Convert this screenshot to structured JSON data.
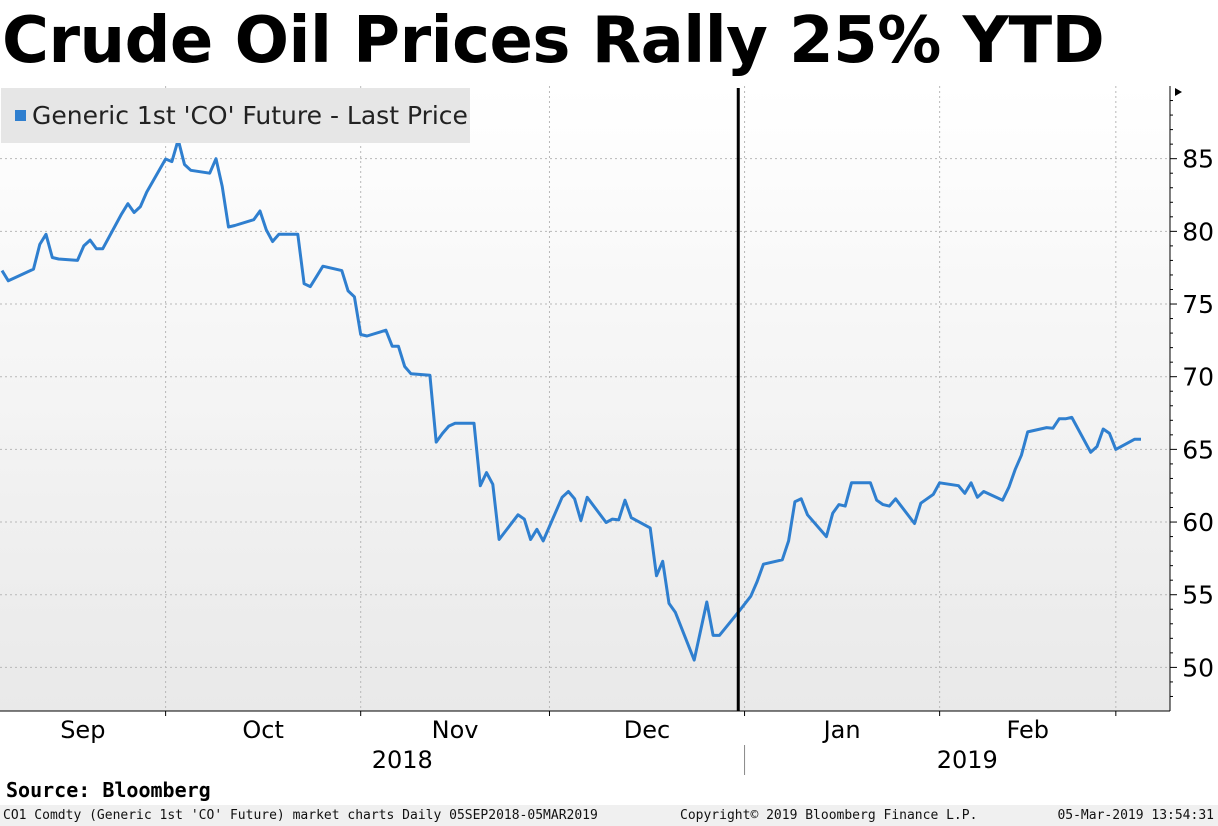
{
  "chart_data": {
    "type": "line",
    "title": "Crude Oil Prices Rally 25% YTD",
    "legend": "Generic 1st 'CO' Future - Last Price",
    "legend_position": "top-left",
    "series_color": "#2f7fcf",
    "ylim": [
      47,
      90
    ],
    "y_ticks": [
      50,
      55,
      60,
      65,
      70,
      75,
      80,
      85
    ],
    "y_axis_side": "right",
    "grid": true,
    "x_range": [
      "2018-09-05",
      "2019-03-05"
    ],
    "month_labels": [
      "Sep",
      "Oct",
      "Nov",
      "Dec",
      "Jan",
      "Feb"
    ],
    "year_labels": [
      "2018",
      "2019"
    ],
    "vertical_marker": "2018-12-31",
    "series": [
      {
        "name": "Generic 1st 'CO' Future - Last Price",
        "x": [
          "2018-09-05",
          "2018-09-06",
          "2018-09-07",
          "2018-09-10",
          "2018-09-11",
          "2018-09-12",
          "2018-09-13",
          "2018-09-14",
          "2018-09-17",
          "2018-09-18",
          "2018-09-19",
          "2018-09-20",
          "2018-09-21",
          "2018-09-24",
          "2018-09-25",
          "2018-09-26",
          "2018-09-27",
          "2018-09-28",
          "2018-10-01",
          "2018-10-02",
          "2018-10-03",
          "2018-10-04",
          "2018-10-05",
          "2018-10-08",
          "2018-10-09",
          "2018-10-10",
          "2018-10-11",
          "2018-10-12",
          "2018-10-15",
          "2018-10-16",
          "2018-10-17",
          "2018-10-18",
          "2018-10-19",
          "2018-10-22",
          "2018-10-23",
          "2018-10-24",
          "2018-10-25",
          "2018-10-26",
          "2018-10-29",
          "2018-10-30",
          "2018-10-31",
          "2018-11-01",
          "2018-11-02",
          "2018-11-05",
          "2018-11-06",
          "2018-11-07",
          "2018-11-08",
          "2018-11-09",
          "2018-11-12",
          "2018-11-13",
          "2018-11-14",
          "2018-11-15",
          "2018-11-16",
          "2018-11-19",
          "2018-11-20",
          "2018-11-21",
          "2018-11-22",
          "2018-11-23",
          "2018-11-26",
          "2018-11-27",
          "2018-11-28",
          "2018-11-29",
          "2018-11-30",
          "2018-12-03",
          "2018-12-04",
          "2018-12-05",
          "2018-12-06",
          "2018-12-07",
          "2018-12-10",
          "2018-12-11",
          "2018-12-12",
          "2018-12-13",
          "2018-12-14",
          "2018-12-17",
          "2018-12-18",
          "2018-12-19",
          "2018-12-20",
          "2018-12-21",
          "2018-12-24",
          "2018-12-26",
          "2018-12-27",
          "2018-12-28",
          "2018-12-31",
          "2019-01-02",
          "2019-01-03",
          "2019-01-04",
          "2019-01-07",
          "2019-01-08",
          "2019-01-09",
          "2019-01-10",
          "2019-01-11",
          "2019-01-14",
          "2019-01-15",
          "2019-01-16",
          "2019-01-17",
          "2019-01-18",
          "2019-01-21",
          "2019-01-22",
          "2019-01-23",
          "2019-01-24",
          "2019-01-25",
          "2019-01-28",
          "2019-01-29",
          "2019-01-30",
          "2019-01-31",
          "2019-02-01",
          "2019-02-04",
          "2019-02-05",
          "2019-02-06",
          "2019-02-07",
          "2019-02-08",
          "2019-02-11",
          "2019-02-12",
          "2019-02-13",
          "2019-02-14",
          "2019-02-15",
          "2019-02-18",
          "2019-02-19",
          "2019-02-20",
          "2019-02-21",
          "2019-02-22",
          "2019-02-25",
          "2019-02-26",
          "2019-02-27",
          "2019-02-28",
          "2019-03-01",
          "2019-03-04",
          "2019-03-05"
        ],
        "values": [
          77.3,
          76.6,
          76.8,
          77.4,
          79.1,
          79.8,
          78.2,
          78.1,
          78.0,
          79.0,
          79.4,
          78.8,
          78.8,
          81.2,
          81.9,
          81.3,
          81.7,
          82.7,
          84.98,
          84.8,
          86.3,
          84.6,
          84.2,
          84.0,
          85.0,
          83.1,
          80.3,
          80.4,
          80.8,
          81.4,
          80.1,
          79.3,
          79.8,
          79.8,
          76.4,
          76.2,
          76.9,
          77.6,
          77.3,
          75.9,
          75.5,
          72.9,
          72.8,
          73.2,
          72.1,
          72.1,
          70.7,
          70.2,
          70.1,
          65.5,
          66.1,
          66.6,
          66.8,
          66.8,
          62.5,
          63.4,
          62.6,
          58.8,
          60.5,
          60.2,
          58.8,
          59.5,
          58.7,
          61.7,
          62.1,
          61.6,
          60.1,
          61.7,
          59.97,
          60.2,
          60.15,
          61.5,
          60.3,
          59.6,
          56.3,
          57.3,
          54.4,
          53.8,
          50.5,
          54.5,
          52.2,
          52.2,
          53.8,
          54.9,
          55.9,
          57.1,
          57.4,
          58.7,
          61.4,
          61.6,
          60.5,
          59.0,
          60.6,
          61.2,
          61.1,
          62.7,
          62.7,
          61.5,
          61.2,
          61.1,
          61.6,
          59.9,
          61.3,
          61.6,
          61.9,
          62.7,
          62.5,
          61.98,
          62.7,
          61.7,
          62.1,
          61.5,
          62.4,
          63.6,
          64.6,
          66.2,
          66.5,
          66.45,
          67.1,
          67.1,
          67.2,
          64.8,
          65.2,
          66.4,
          66.1,
          65.0,
          65.7,
          65.7
        ]
      }
    ]
  },
  "footer": {
    "source": "Source: Bloomberg",
    "ticker_info": "CO1 Comdty (Generic 1st 'CO' Future) market charts  Daily 05SEP2018-05MAR2019",
    "copyright": "Copyright© 2019 Bloomberg Finance L.P.",
    "timestamp": "05-Mar-2019 13:54:31"
  }
}
